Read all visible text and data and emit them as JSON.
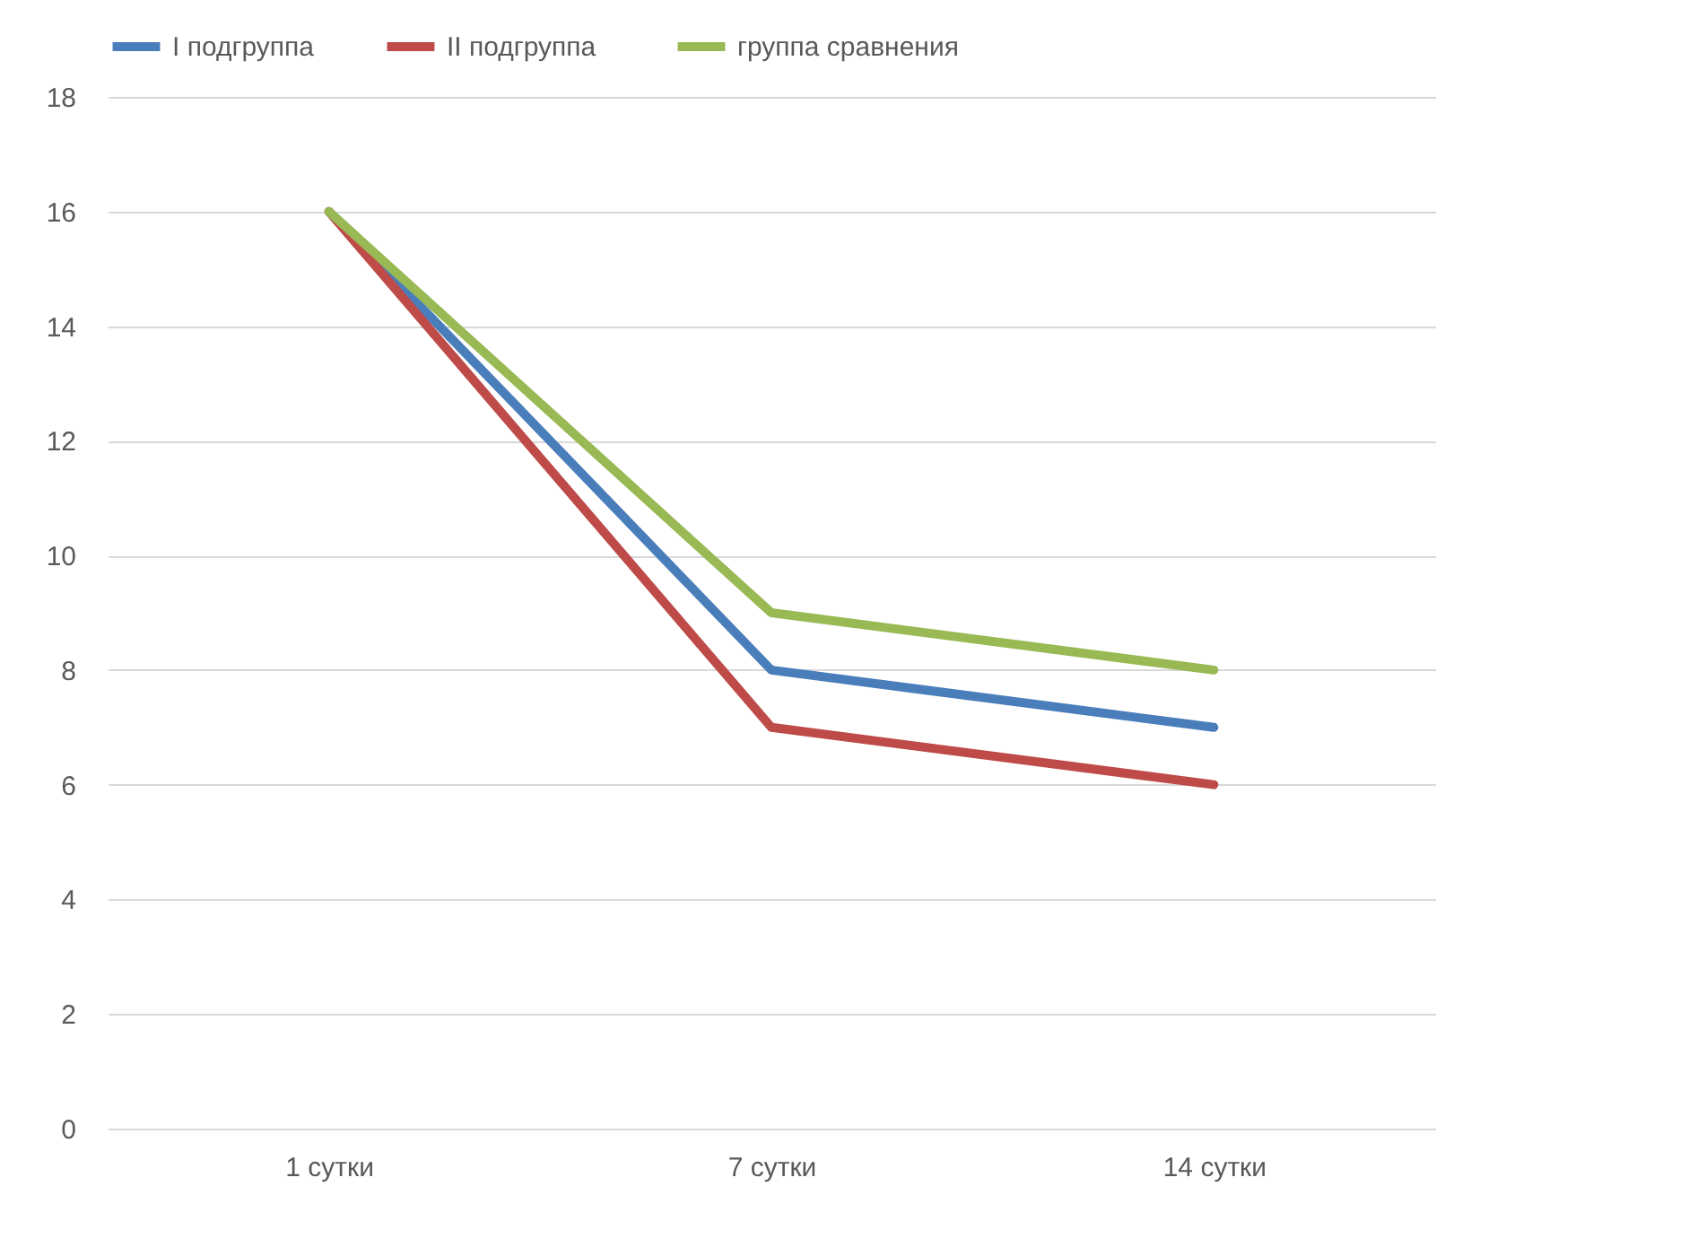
{
  "chart_data": {
    "type": "line",
    "categories": [
      "1 сутки",
      "7 сутки",
      "14 сутки"
    ],
    "series": [
      {
        "name": "I подгруппа",
        "color": "#4a7ebb",
        "values": [
          16,
          8,
          7
        ]
      },
      {
        "name": "II  подгруппа",
        "color": "#be4b48",
        "values": [
          16,
          7,
          6
        ]
      },
      {
        "name": "группа сравнения",
        "color": "#98b954",
        "values": [
          16,
          9,
          8
        ]
      }
    ],
    "ylim": [
      0,
      18
    ],
    "yticks": [
      0,
      2,
      4,
      6,
      8,
      10,
      12,
      14,
      16,
      18
    ],
    "grid": "y",
    "legend": "top",
    "marker": "none",
    "line_style": "solid"
  }
}
